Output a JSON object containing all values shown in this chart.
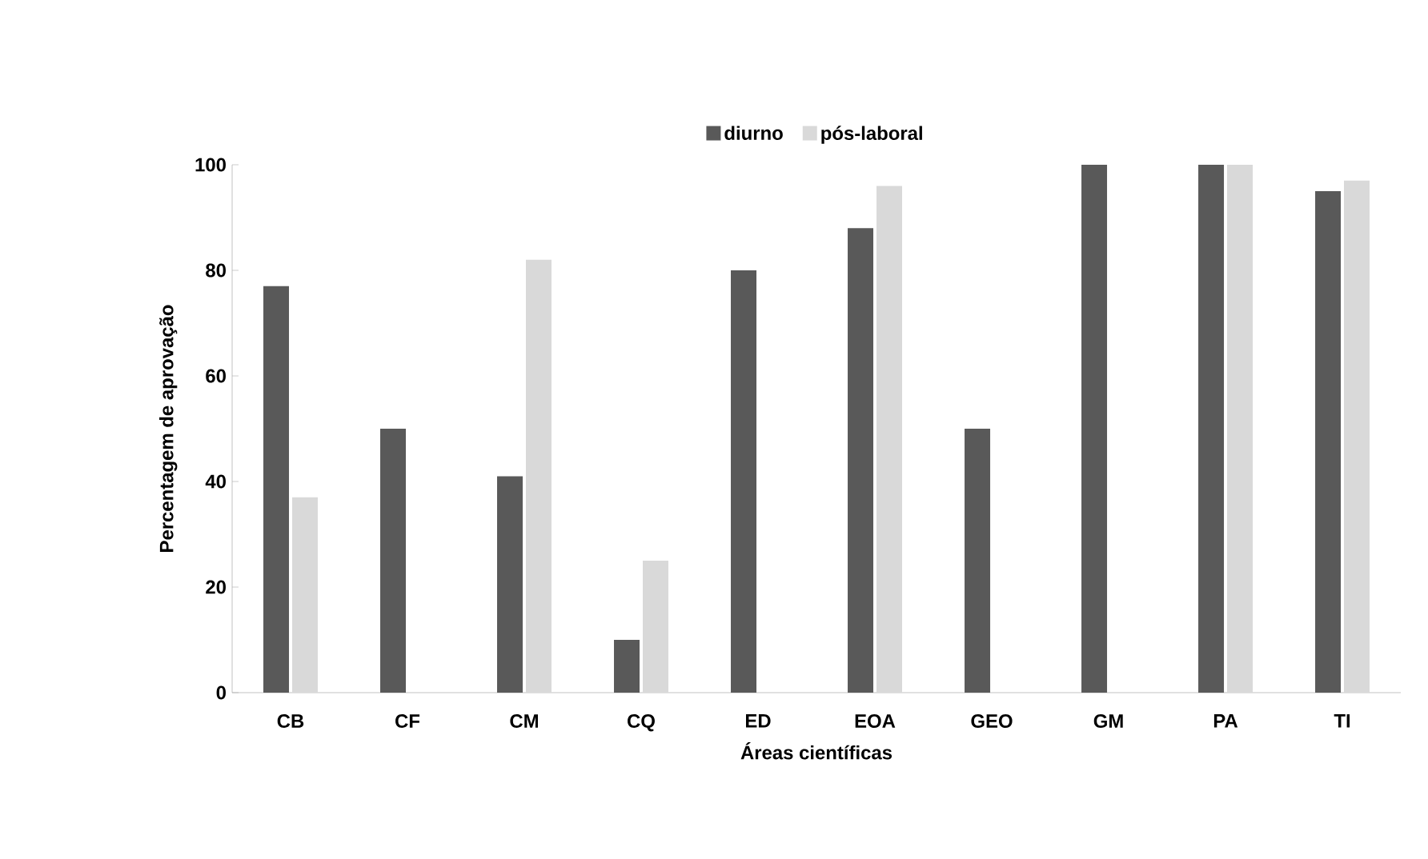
{
  "chart_data": {
    "type": "bar",
    "xlabel": "Áreas científicas",
    "ylabel": "Percentagem de aprovação",
    "categories": [
      "CB",
      "CF",
      "CM",
      "CQ",
      "ED",
      "EOA",
      "GEO",
      "GM",
      "PA",
      "TI"
    ],
    "series": [
      {
        "name": "diurno",
        "color": "#595959",
        "values": [
          77,
          50,
          41,
          10,
          80,
          88,
          50,
          100,
          100,
          95
        ]
      },
      {
        "name": "pós-laboral",
        "color": "#d9d9d9",
        "values": [
          37,
          null,
          82,
          25,
          null,
          96,
          null,
          null,
          100,
          97
        ]
      }
    ],
    "ylim": [
      0,
      100
    ],
    "yticks": [
      0,
      20,
      40,
      60,
      80,
      100
    ],
    "grid": false,
    "legend": "top"
  }
}
